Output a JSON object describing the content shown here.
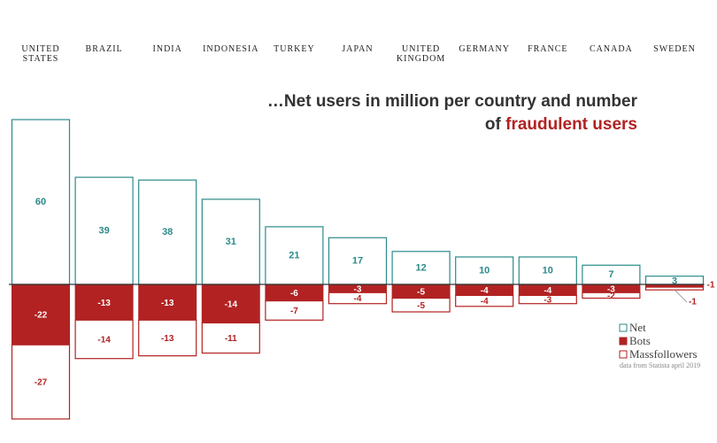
{
  "chart_data": {
    "type": "diverging-bar",
    "title": [
      "…Net users in million per country and number",
      "of"
    ],
    "title_emphasis": "fraudulent users",
    "categories": [
      "UNITED STATES",
      "BRAZIL",
      "INDIA",
      "INDONESIA",
      "TURKEY",
      "JAPAN",
      "UNITED KINGDOM",
      "GERMANY",
      "FRANCE",
      "CANADA",
      "SWEDEN"
    ],
    "series": [
      {
        "name": "Net",
        "color": "#2b8a8a",
        "values": [
          60,
          39,
          38,
          31,
          21,
          17,
          12,
          10,
          10,
          7,
          3
        ]
      },
      {
        "name": "Bots",
        "color": "#b22222",
        "values": [
          -22,
          -13,
          -13,
          -14,
          -6,
          -3,
          -5,
          -4,
          -4,
          -3,
          -1
        ]
      },
      {
        "name": "Massfollowers",
        "color": "#b22222",
        "values": [
          -27,
          -14,
          -13,
          -11,
          -7,
          -4,
          -5,
          -4,
          -3,
          -2,
          -1
        ]
      }
    ],
    "source": "data from Statista april 2019"
  }
}
